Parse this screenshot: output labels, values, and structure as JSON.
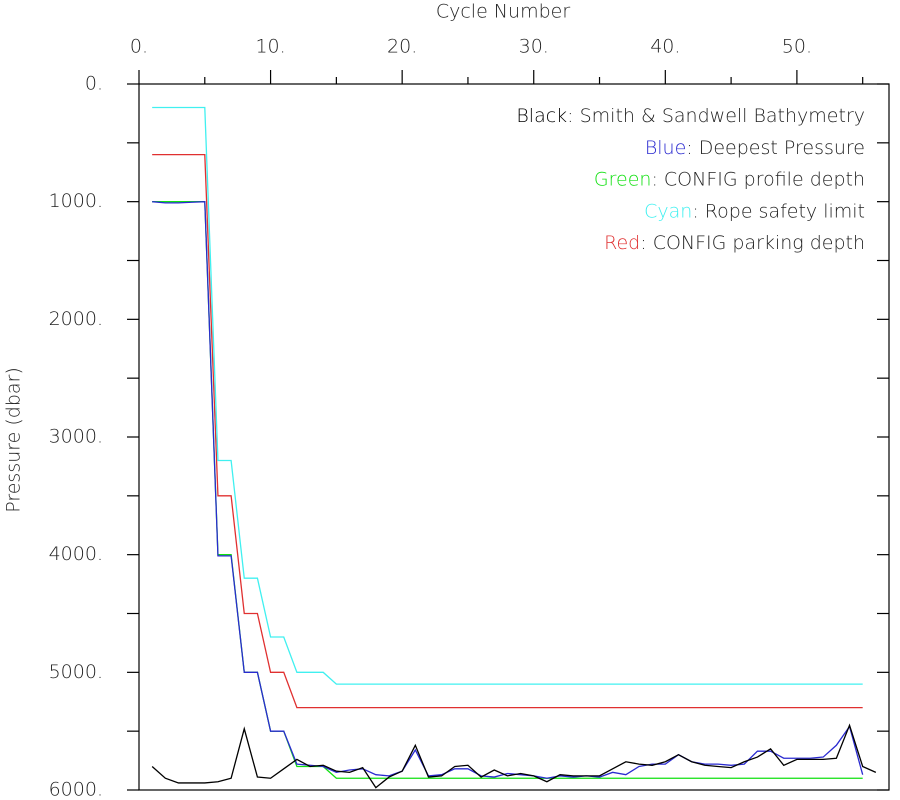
{
  "chart_data": {
    "type": "line",
    "x_label": "Cycle Number",
    "y_label": "Pressure (dbar)",
    "xlim": [
      0,
      57
    ],
    "ylim": [
      0,
      6000
    ],
    "y_inverted": true,
    "x_axis_position": "top",
    "xticks": [
      {
        "value": 0,
        "label": "0."
      },
      {
        "value": 10,
        "label": "10."
      },
      {
        "value": 20,
        "label": "20."
      },
      {
        "value": 30,
        "label": "30."
      },
      {
        "value": 40,
        "label": "40."
      },
      {
        "value": 50,
        "label": "50."
      }
    ],
    "xminorticks": [
      5,
      15,
      25,
      35,
      45,
      55
    ],
    "yticks": [
      {
        "value": 0,
        "label": "0."
      },
      {
        "value": 1000,
        "label": "1000."
      },
      {
        "value": 2000,
        "label": "2000."
      },
      {
        "value": 3000,
        "label": "3000."
      },
      {
        "value": 4000,
        "label": "4000."
      },
      {
        "value": 5000,
        "label": "5000."
      },
      {
        "value": 6000,
        "label": "6000."
      }
    ],
    "yminorticks": [
      500,
      1500,
      2500,
      3500,
      4500,
      5500
    ],
    "legend_position": "upper right",
    "legend_separator": ": ",
    "x": [
      1,
      2,
      3,
      4,
      5,
      6,
      7,
      8,
      9,
      10,
      11,
      12,
      13,
      14,
      15,
      16,
      17,
      18,
      19,
      20,
      21,
      22,
      23,
      24,
      25,
      26,
      27,
      28,
      29,
      30,
      31,
      32,
      33,
      34,
      35,
      36,
      37,
      38,
      39,
      40,
      41,
      42,
      43,
      44,
      45,
      46,
      47,
      48,
      49,
      50,
      51,
      52,
      53,
      54,
      55,
      56
    ],
    "series": [
      {
        "name": "Smith & Sandwell Bathymetry",
        "color_word": "Black",
        "color": "#000000",
        "values": [
          5800,
          5900,
          5940,
          5940,
          5940,
          5930,
          5900,
          5480,
          5890,
          5900,
          5820,
          5740,
          5800,
          5790,
          5840,
          5850,
          5810,
          5980,
          5890,
          5840,
          5620,
          5890,
          5880,
          5800,
          5790,
          5890,
          5830,
          5880,
          5860,
          5880,
          5930,
          5870,
          5880,
          5880,
          5880,
          5820,
          5760,
          5780,
          5790,
          5760,
          5700,
          5760,
          5790,
          5800,
          5810,
          5760,
          5720,
          5650,
          5790,
          5740,
          5740,
          5740,
          5730,
          5450,
          5800,
          5850
        ]
      },
      {
        "name": "Deepest Pressure",
        "color_word": "Blue",
        "color": "#2a2ad0",
        "values": [
          1000,
          1010,
          1010,
          1005,
          1000,
          4010,
          4010,
          5000,
          5000,
          5500,
          5500,
          5780,
          5790,
          5800,
          5850,
          5830,
          5820,
          5870,
          5880,
          5840,
          5660,
          5880,
          5870,
          5820,
          5820,
          5880,
          5890,
          5860,
          5870,
          5880,
          5900,
          5880,
          5890,
          5880,
          5890,
          5850,
          5870,
          5800,
          5780,
          5780,
          5700,
          5760,
          5780,
          5780,
          5790,
          5780,
          5670,
          5670,
          5730,
          5730,
          5730,
          5720,
          5620,
          5460,
          5870,
          null
        ]
      },
      {
        "name": "CONFIG profile depth",
        "color_word": "Green",
        "color": "#10e010",
        "values": [
          1000,
          1000,
          1000,
          1000,
          1000,
          4000,
          4000,
          5000,
          5000,
          5500,
          5500,
          5800,
          5800,
          5800,
          5900,
          5900,
          5900,
          5900,
          5900,
          5900,
          5900,
          5900,
          5900,
          5900,
          5900,
          5900,
          5900,
          5900,
          5900,
          5900,
          5900,
          5900,
          5900,
          5900,
          5900,
          5900,
          5900,
          5900,
          5900,
          5900,
          5900,
          5900,
          5900,
          5900,
          5900,
          5900,
          5900,
          5900,
          5900,
          5900,
          5900,
          5900,
          5900,
          5900,
          5900,
          null
        ]
      },
      {
        "name": "Rope safety limit",
        "color_word": "Cyan",
        "color": "#40f0f0",
        "values": [
          200,
          200,
          200,
          200,
          200,
          3200,
          3200,
          4200,
          4200,
          4700,
          4700,
          5000,
          5000,
          5000,
          5100,
          5100,
          5100,
          5100,
          5100,
          5100,
          5100,
          5100,
          5100,
          5100,
          5100,
          5100,
          5100,
          5100,
          5100,
          5100,
          5100,
          5100,
          5100,
          5100,
          5100,
          5100,
          5100,
          5100,
          5100,
          5100,
          5100,
          5100,
          5100,
          5100,
          5100,
          5100,
          5100,
          5100,
          5100,
          5100,
          5100,
          5100,
          5100,
          5100,
          5100,
          null
        ]
      },
      {
        "name": "CONFIG parking depth",
        "color_word": "Red",
        "color": "#e03030",
        "values": [
          600,
          600,
          600,
          600,
          600,
          3500,
          3500,
          4500,
          4500,
          5000,
          5000,
          5300,
          5300,
          5300,
          5300,
          5300,
          5300,
          5300,
          5300,
          5300,
          5300,
          5300,
          5300,
          5300,
          5300,
          5300,
          5300,
          5300,
          5300,
          5300,
          5300,
          5300,
          5300,
          5300,
          5300,
          5300,
          5300,
          5300,
          5300,
          5300,
          5300,
          5300,
          5300,
          5300,
          5300,
          5300,
          5300,
          5300,
          5300,
          5300,
          5300,
          5300,
          5300,
          5300,
          5300,
          null
        ]
      }
    ]
  }
}
